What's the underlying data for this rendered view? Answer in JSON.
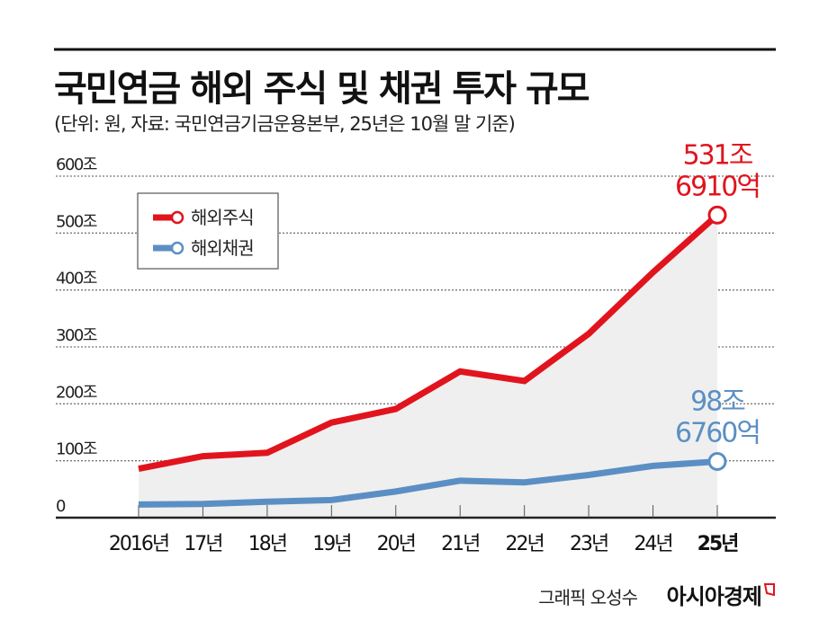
{
  "header": {
    "title": "국민연금 해외 주식 및 채권 투자 규모",
    "subtitle": "(단위: 원, 자료: 국민연금기금운용본부, 25년은 10월 말 기준)"
  },
  "chart_data": {
    "type": "line",
    "title": "국민연금 해외 주식 및 채권 투자 규모",
    "xlabel": "",
    "ylabel": "",
    "unit": "조 원",
    "ylim": [
      0,
      600
    ],
    "yticks": [
      0,
      100,
      200,
      300,
      400,
      500,
      600
    ],
    "ytick_labels": [
      "0",
      "100조",
      "200조",
      "300조",
      "400조",
      "500조",
      "600조"
    ],
    "categories": [
      "2016년",
      "17년",
      "18년",
      "19년",
      "20년",
      "21년",
      "22년",
      "23년",
      "24년",
      "25년"
    ],
    "grid": true,
    "legend_position": "top-left",
    "series": [
      {
        "name": "해외주식",
        "color": "#e1141e",
        "values": [
          86,
          108,
          114,
          167,
          191,
          257,
          240,
          323,
          431,
          531.69
        ]
      },
      {
        "name": "해외채권",
        "color": "#5b8fc4",
        "values": [
          23,
          24,
          28,
          31,
          46,
          65,
          62,
          75,
          91,
          98.676
        ]
      }
    ],
    "annotations": [
      {
        "series": "해외주식",
        "lines": [
          "531조",
          "6910억"
        ]
      },
      {
        "series": "해외채권",
        "lines": [
          "98조",
          "6760억"
        ]
      }
    ]
  },
  "footer": {
    "credit": "그래픽 오성수",
    "brand": "아시아경제"
  }
}
